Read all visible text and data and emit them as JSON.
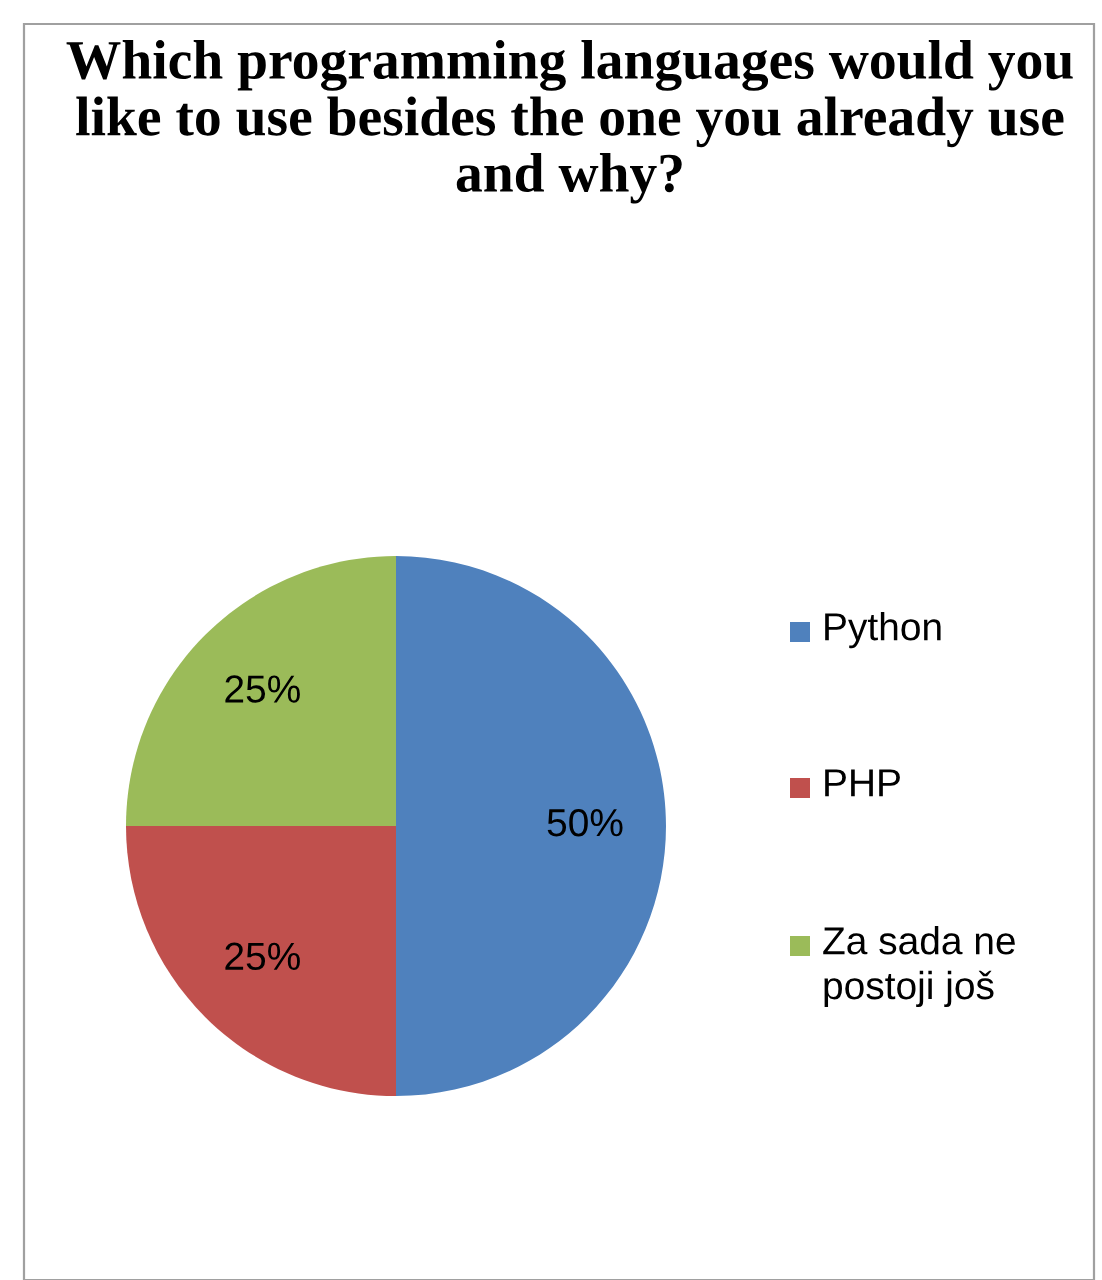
{
  "chart_data": {
    "type": "pie",
    "title": "Which programming languages would you like to use besides the one you already use and why?",
    "categories": [
      "Python",
      "PHP",
      "Za sada ne postoji još"
    ],
    "values": [
      50,
      25,
      25
    ],
    "colors": [
      "#4f81bd",
      "#c0504d",
      "#9bbb59"
    ],
    "value_labels": [
      "50%",
      "25%",
      "25%"
    ],
    "legend": "right"
  }
}
